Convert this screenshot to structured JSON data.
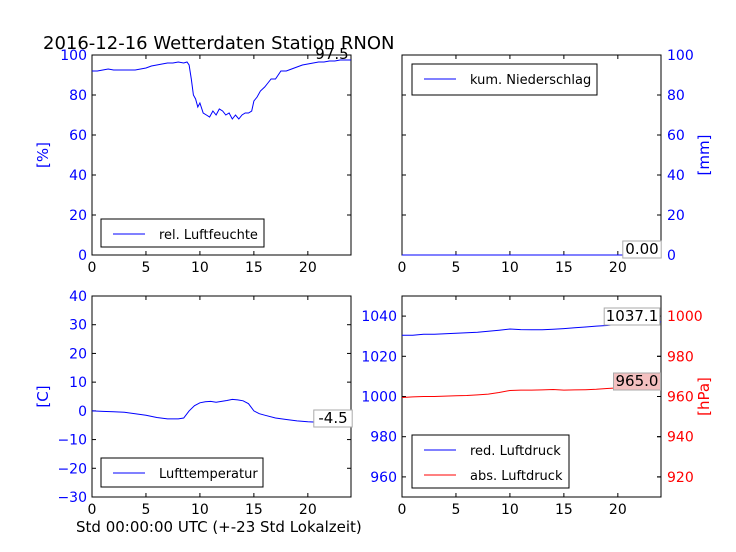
{
  "figure": {
    "title": "2016-12-16 Wetterdaten Station RNON",
    "xlabel": "Std 00:00:00 UTC (+-23 Std Lokalzeit)"
  },
  "colors": {
    "blue": "#0000ff",
    "red": "#ff0000",
    "black": "#000000",
    "red_box": "#f4c0c0"
  },
  "chart_data": [
    {
      "id": "humidity",
      "type": "line",
      "ylabel": "[%]",
      "ylabel_side": "left",
      "ylabel_color": "#0000ff",
      "xlim": [
        0,
        24
      ],
      "ylim": [
        0,
        100
      ],
      "xticks": [
        0,
        5,
        10,
        15,
        20
      ],
      "yticks": [
        0,
        20,
        40,
        60,
        80,
        100
      ],
      "ytick_color": "#0000ff",
      "legend": {
        "placement": "lower-left",
        "entries": [
          {
            "label": "rel. Luftfeuchte",
            "color": "#0000ff"
          }
        ]
      },
      "series": [
        {
          "name": "rel. Luftfeuchte",
          "color": "#0000ff",
          "x": [
            0,
            0.5,
            1,
            1.5,
            2,
            3,
            4,
            4.5,
            5,
            5.5,
            6,
            6.5,
            7,
            7.5,
            8,
            8.5,
            8.8,
            9,
            9.2,
            9.4,
            9.6,
            9.8,
            10,
            10.3,
            10.6,
            10.9,
            11.2,
            11.5,
            11.8,
            12.1,
            12.4,
            12.7,
            13,
            13.3,
            13.6,
            13.9,
            14.2,
            14.5,
            14.8,
            15,
            15.3,
            15.6,
            16,
            16.3,
            16.6,
            17,
            17.5,
            18,
            18.5,
            19,
            19.5,
            20,
            20.5,
            21,
            21.5,
            22,
            22.5,
            23,
            23.5,
            24
          ],
          "y": [
            92,
            92,
            92.5,
            93,
            92.5,
            92.5,
            92.5,
            93,
            93.5,
            94.5,
            95,
            95.5,
            96,
            96,
            96.5,
            96,
            96.5,
            95,
            88,
            80,
            78,
            74,
            76,
            71,
            70,
            69,
            72,
            70,
            73,
            72,
            70,
            71,
            68,
            70,
            68,
            70,
            71,
            71,
            72,
            77,
            79,
            82,
            84,
            86,
            88,
            88,
            92,
            92,
            93,
            94,
            95,
            95.5,
            96,
            96.5,
            96.5,
            97,
            97,
            97.5,
            97.5,
            97.5
          ]
        }
      ],
      "annotations": [
        {
          "text": "97.5",
          "box": "none"
        }
      ]
    },
    {
      "id": "precipitation",
      "type": "line",
      "ylabel": "[mm]",
      "ylabel_side": "right",
      "ylabel_color": "#0000ff",
      "xlim": [
        0,
        24
      ],
      "ylim": [
        0,
        100
      ],
      "xticks": [
        0,
        5,
        10,
        15,
        20
      ],
      "yticks": [
        0,
        20,
        40,
        60,
        80,
        100
      ],
      "ytick_color": "#0000ff",
      "legend": {
        "placement": "upper-left",
        "entries": [
          {
            "label": "kum. Niederschlag",
            "color": "#0000ff"
          }
        ]
      },
      "series": [
        {
          "name": "kum. Niederschlag",
          "color": "#0000ff",
          "x": [
            0,
            24
          ],
          "y": [
            0,
            0
          ]
        }
      ],
      "annotations": [
        {
          "text": "0.00",
          "box": "white"
        }
      ]
    },
    {
      "id": "temperature",
      "type": "line",
      "ylabel": "[C]",
      "ylabel_side": "left",
      "ylabel_color": "#0000ff",
      "xlim": [
        0,
        24
      ],
      "ylim": [
        -30,
        40
      ],
      "xticks": [
        0,
        5,
        10,
        15,
        20
      ],
      "yticks": [
        -30,
        -20,
        -10,
        0,
        10,
        20,
        30,
        40
      ],
      "ytick_color": "#0000ff",
      "legend": {
        "placement": "lower-left",
        "entries": [
          {
            "label": "Lufttemperatur",
            "color": "#0000ff"
          }
        ]
      },
      "series": [
        {
          "name": "Lufttemperatur",
          "color": "#0000ff",
          "x": [
            0,
            1,
            2,
            3,
            4,
            5,
            6,
            7,
            8,
            8.5,
            9,
            9.5,
            10,
            10.5,
            11,
            11.5,
            12,
            12.5,
            13,
            13.5,
            14,
            14.5,
            15,
            15.5,
            16,
            17,
            18,
            19,
            20,
            21,
            22,
            23,
            24
          ],
          "y": [
            0,
            -0.2,
            -0.3,
            -0.5,
            -1,
            -1.5,
            -2.3,
            -2.8,
            -2.8,
            -2.5,
            0,
            1.8,
            2.8,
            3.2,
            3.3,
            3,
            3.3,
            3.6,
            4,
            3.8,
            3.5,
            2.5,
            0,
            -1,
            -1.5,
            -2.5,
            -3,
            -3.5,
            -3.8,
            -4,
            -4.3,
            -4.5,
            -4.5
          ]
        }
      ],
      "annotations": [
        {
          "text": "-4.5",
          "box": "white"
        }
      ]
    },
    {
      "id": "pressure",
      "type": "line",
      "ylabel": "[hPa]",
      "ylabel_side": "right",
      "ylabel_color": "#ff0000",
      "xlim": [
        0,
        24
      ],
      "ylim": [
        950,
        1050
      ],
      "ylim_right": [
        910,
        1010
      ],
      "xticks": [
        0,
        5,
        10,
        15,
        20
      ],
      "yticks": [
        960,
        980,
        1000,
        1020,
        1040
      ],
      "ytick_color": "#0000ff",
      "yticks_right": [
        920,
        940,
        960,
        980,
        1000
      ],
      "ytick_right_color": "#ff0000",
      "legend": {
        "placement": "lower-left",
        "entries": [
          {
            "label": "red. Luftdruck",
            "color": "#0000ff"
          },
          {
            "label": "abs. Luftdruck",
            "color": "#ff0000"
          }
        ]
      },
      "series": [
        {
          "name": "red. Luftdruck",
          "color": "#0000ff",
          "axis": "left",
          "x": [
            0,
            1,
            2,
            3,
            4,
            5,
            6,
            7,
            8,
            9,
            10,
            11,
            12,
            13,
            14,
            15,
            16,
            17,
            18,
            19,
            20,
            21,
            22,
            23,
            24
          ],
          "y": [
            1030.5,
            1030.5,
            1031,
            1031,
            1031.2,
            1031.5,
            1031.7,
            1032,
            1032.5,
            1033,
            1033.6,
            1033.3,
            1033.2,
            1033.2,
            1033.5,
            1033.8,
            1034.2,
            1034.6,
            1035,
            1035.3,
            1036,
            1036.5,
            1036.8,
            1037,
            1037.1
          ]
        },
        {
          "name": "abs. Luftdruck",
          "color": "#ff0000",
          "axis": "right",
          "x": [
            0,
            1,
            2,
            3,
            4,
            5,
            6,
            7,
            8,
            9,
            10,
            11,
            12,
            13,
            14,
            15,
            16,
            17,
            18,
            19,
            20,
            21,
            22,
            23,
            24
          ],
          "y": [
            959.5,
            959.8,
            960,
            960,
            960.2,
            960.4,
            960.5,
            960.8,
            961.2,
            962,
            963,
            963.2,
            963.2,
            963.3,
            963.5,
            963.2,
            963.3,
            963.4,
            963.6,
            964,
            964.3,
            964.6,
            964.8,
            965,
            965
          ]
        }
      ],
      "annotations": [
        {
          "text": "1037.1",
          "box": "white"
        },
        {
          "text": "965.0",
          "box": "red"
        }
      ]
    }
  ]
}
